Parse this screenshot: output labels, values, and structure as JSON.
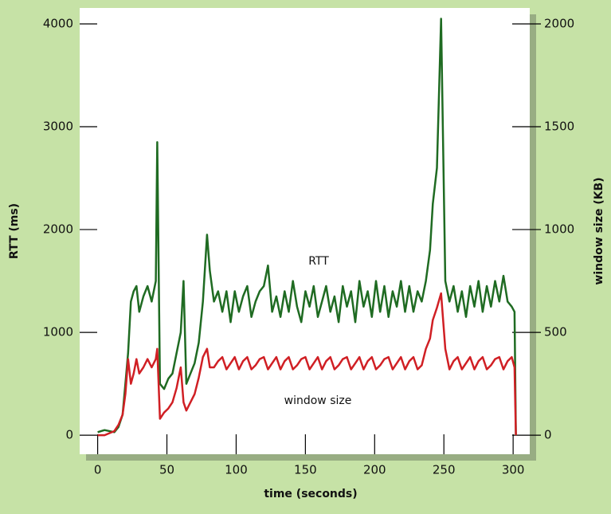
{
  "chart_data": {
    "type": "line",
    "x_label": "time (seconds)",
    "y_label": "RTT (ms)",
    "y2_label": "window size (KB)",
    "annotations": [
      "RTT",
      "window size"
    ],
    "xlim": [
      -13,
      312
    ],
    "xticks": [
      0,
      50,
      100,
      150,
      200,
      250,
      300
    ],
    "ylim": [
      -185,
      4155
    ],
    "yticks": [
      0,
      1000,
      2000,
      3000,
      4000
    ],
    "y2lim": [
      -92.5,
      2077.5
    ],
    "y2ticks": [
      0,
      500,
      1000,
      1500,
      2000
    ],
    "x": [
      0,
      5,
      12,
      15,
      18,
      20,
      22,
      24,
      26,
      28,
      30,
      33,
      36,
      39,
      42,
      43,
      45,
      48,
      51,
      54,
      57,
      60,
      62,
      64,
      67,
      70,
      73,
      76,
      79,
      81,
      84,
      87,
      90,
      93,
      96,
      99,
      102,
      105,
      108,
      111,
      114,
      117,
      120,
      123,
      126,
      129,
      132,
      135,
      138,
      141,
      144,
      147,
      150,
      153,
      156,
      159,
      162,
      165,
      168,
      171,
      174,
      177,
      180,
      183,
      186,
      189,
      192,
      195,
      198,
      201,
      204,
      207,
      210,
      213,
      216,
      219,
      222,
      225,
      228,
      231,
      234,
      237,
      240,
      242,
      245,
      248,
      251,
      254,
      257,
      260,
      263,
      266,
      269,
      272,
      275,
      278,
      281,
      284,
      287,
      290,
      293,
      296,
      299,
      301,
      302
    ],
    "series": [
      {
        "name": "RTT",
        "color": "#1f6b22",
        "values": [
          30,
          50,
          30,
          80,
          200,
          500,
          800,
          1300,
          1400,
          1450,
          1200,
          1350,
          1450,
          1300,
          1500,
          2850,
          500,
          450,
          550,
          600,
          800,
          1000,
          1500,
          500,
          600,
          700,
          900,
          1300,
          1950,
          1600,
          1300,
          1400,
          1200,
          1400,
          1100,
          1400,
          1200,
          1350,
          1450,
          1150,
          1300,
          1400,
          1450,
          1650,
          1200,
          1350,
          1150,
          1400,
          1200,
          1500,
          1250,
          1100,
          1400,
          1250,
          1450,
          1150,
          1300,
          1450,
          1200,
          1350,
          1100,
          1450,
          1250,
          1400,
          1100,
          1500,
          1250,
          1400,
          1150,
          1500,
          1200,
          1450,
          1150,
          1400,
          1250,
          1500,
          1200,
          1450,
          1200,
          1400,
          1300,
          1500,
          1800,
          2250,
          2600,
          4050,
          1500,
          1300,
          1450,
          1200,
          1400,
          1150,
          1450,
          1250,
          1500,
          1200,
          1450,
          1250,
          1500,
          1300,
          1550,
          1300,
          1250,
          1200,
          0
        ]
      },
      {
        "name": "window size",
        "color": "#d01f24",
        "axis": "y2",
        "values": [
          0,
          0,
          20,
          50,
          100,
          200,
          370,
          250,
          300,
          370,
          300,
          330,
          370,
          330,
          370,
          420,
          80,
          110,
          130,
          160,
          230,
          330,
          160,
          120,
          160,
          200,
          280,
          380,
          420,
          330,
          330,
          360,
          380,
          320,
          350,
          380,
          320,
          360,
          380,
          320,
          340,
          370,
          380,
          320,
          350,
          380,
          320,
          360,
          380,
          320,
          340,
          370,
          380,
          320,
          350,
          380,
          320,
          360,
          380,
          320,
          340,
          370,
          380,
          320,
          350,
          380,
          320,
          360,
          380,
          320,
          340,
          370,
          380,
          320,
          350,
          380,
          320,
          360,
          380,
          320,
          340,
          420,
          470,
          560,
          620,
          690,
          420,
          320,
          360,
          380,
          320,
          350,
          380,
          320,
          360,
          380,
          320,
          340,
          370,
          380,
          320,
          360,
          380,
          330,
          0
        ]
      }
    ]
  }
}
